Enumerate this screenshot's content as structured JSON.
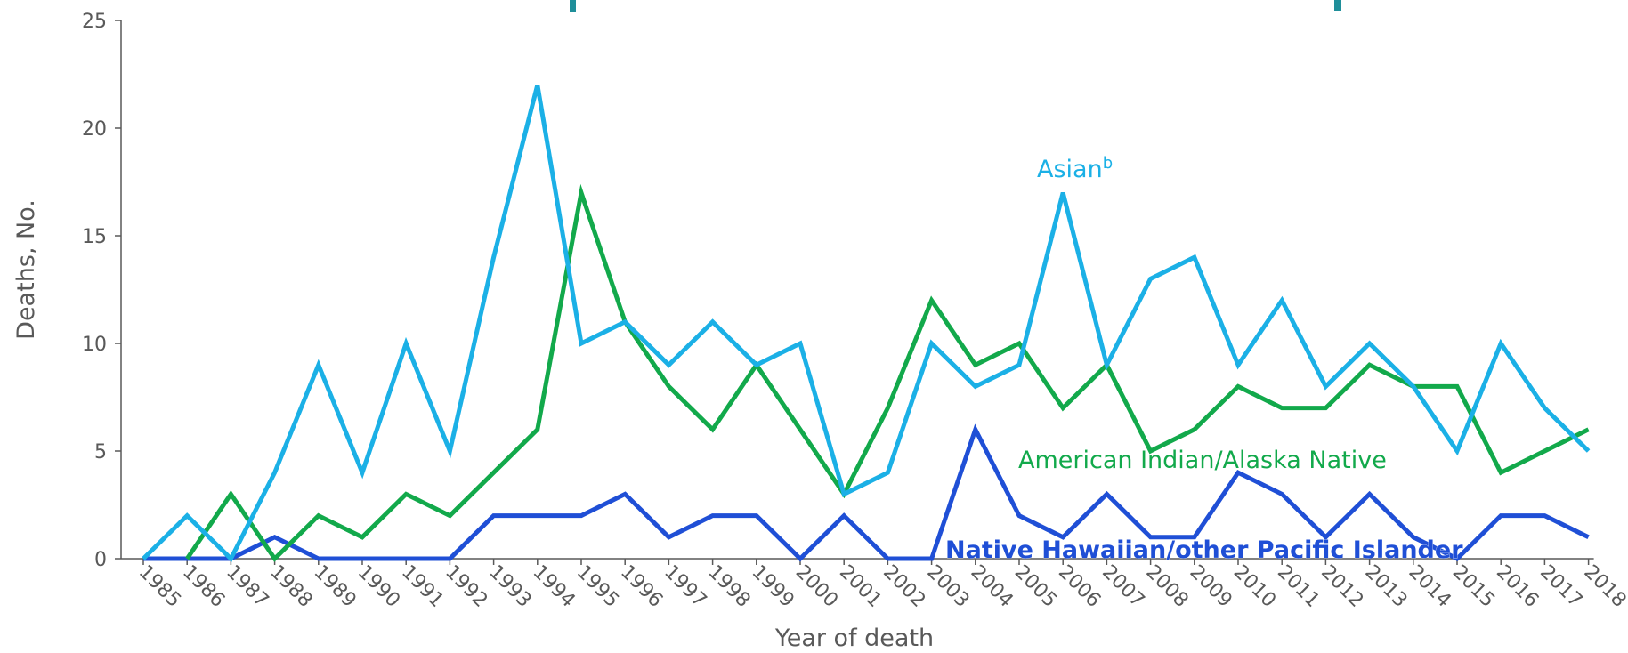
{
  "chart_data": {
    "type": "line",
    "title": "",
    "xlabel": "Year of death",
    "ylabel": "Deaths, No.",
    "ylim": [
      0,
      25
    ],
    "yticks": [
      0,
      5,
      10,
      15,
      20,
      25
    ],
    "grid": false,
    "legend": "inline",
    "x": [
      "1985",
      "1986",
      "1987",
      "1988",
      "1989",
      "1990",
      "1991",
      "1992",
      "1993",
      "1994",
      "1995",
      "1996",
      "1997",
      "1998",
      "1999",
      "2000",
      "2001",
      "2002",
      "2003",
      "2004",
      "2005",
      "2006",
      "2007",
      "2008",
      "2009",
      "2010",
      "2011",
      "2012",
      "2013",
      "2014",
      "2015",
      "2016",
      "2017",
      "2018"
    ],
    "series": [
      {
        "name": "Asian",
        "name_sup": "b",
        "color": "#1bb0e6",
        "values": [
          0,
          2,
          0,
          4,
          9,
          4,
          10,
          5,
          14,
          22,
          10,
          11,
          9,
          11,
          9,
          10,
          3,
          4,
          10,
          8,
          9,
          17,
          9,
          13,
          14,
          9,
          12,
          8,
          10,
          8,
          5,
          10,
          7,
          5
        ]
      },
      {
        "name": "American Indian/Alaska Native",
        "color": "#12a94b",
        "values": [
          null,
          0,
          3,
          0,
          2,
          1,
          3,
          2,
          4,
          6,
          17,
          11,
          8,
          6,
          9,
          6,
          3,
          7,
          12,
          9,
          10,
          7,
          9,
          5,
          6,
          8,
          7,
          7,
          9,
          8,
          8,
          4,
          5,
          6
        ]
      },
      {
        "name": "Native Hawaiian/other Pacific Islander",
        "color": "#1f4fd6",
        "values": [
          0,
          0,
          0,
          1,
          0,
          0,
          0,
          0,
          2,
          2,
          2,
          3,
          1,
          2,
          2,
          0,
          2,
          0,
          0,
          6,
          2,
          1,
          3,
          1,
          1,
          4,
          3,
          1,
          3,
          1,
          0,
          2,
          2,
          1
        ]
      }
    ]
  },
  "colors": {
    "axis": "#595959",
    "title_fragment": "#1f8f9a"
  }
}
